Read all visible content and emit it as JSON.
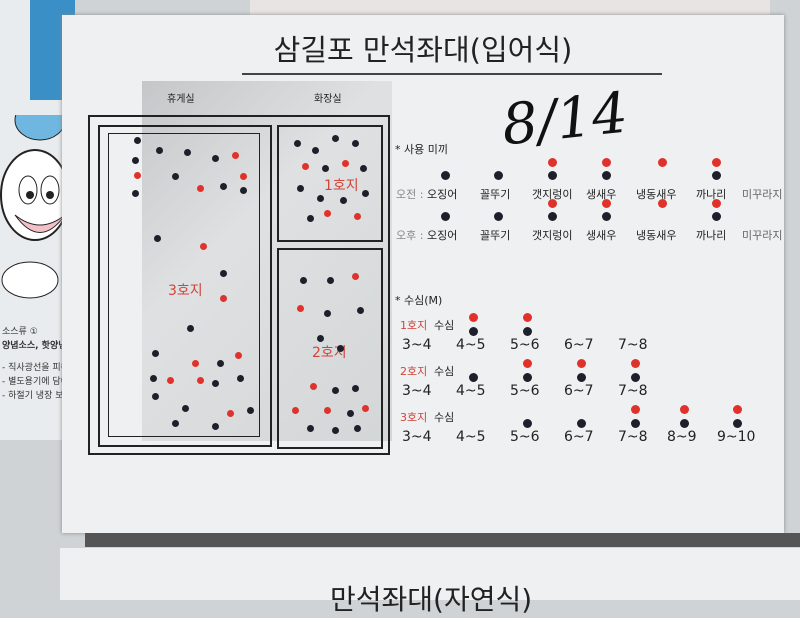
{
  "title": "삼길포 만석좌대(입어식)",
  "date": "8/14",
  "map": {
    "rooms": [
      "휴게실",
      "화장실"
    ],
    "zones": [
      "3호지",
      "1호지",
      "2호지"
    ]
  },
  "bait": {
    "heading": "* 사용 미끼",
    "items": [
      "오징어",
      "꼴뚜기",
      "갯지렁이",
      "생새우",
      "냉동새우",
      "까나리",
      "미꾸라지"
    ],
    "rows": [
      {
        "label": "오전 :",
        "black": [
          true,
          true,
          true,
          true,
          false,
          true,
          false
        ],
        "red": [
          false,
          false,
          true,
          true,
          true,
          true,
          false
        ]
      },
      {
        "label": "오후 :",
        "black": [
          true,
          true,
          true,
          true,
          false,
          true,
          false
        ],
        "red": [
          false,
          false,
          true,
          true,
          true,
          true,
          false
        ]
      }
    ]
  },
  "depth": {
    "heading": "* 수심(M)",
    "ranges": [
      "3~4",
      "4~5",
      "5~6",
      "6~7",
      "7~8",
      "8~9",
      "9~10"
    ],
    "ponds": [
      {
        "name": "1호지",
        "suffix": "수심",
        "count": 5,
        "black": [
          false,
          true,
          true,
          false,
          false
        ],
        "red": [
          false,
          true,
          true,
          false,
          false
        ]
      },
      {
        "name": "2호지",
        "suffix": "수심",
        "count": 5,
        "black": [
          false,
          true,
          true,
          true,
          true
        ],
        "red": [
          false,
          false,
          true,
          true,
          true
        ]
      },
      {
        "name": "3호지",
        "suffix": "수심",
        "count": 7,
        "black": [
          false,
          false,
          true,
          true,
          true,
          true,
          true
        ],
        "red": [
          false,
          false,
          false,
          false,
          true,
          true,
          true
        ]
      }
    ]
  },
  "left_sign": {
    "lines": [
      "소스류 ①",
      "양념소스, 핫양념소스",
      "- 직사광선을 피해",
      "- 별도용기에 담아",
      "- 하절기 냉장 보관"
    ]
  },
  "bottom_title": "만석좌대(자연식)"
}
